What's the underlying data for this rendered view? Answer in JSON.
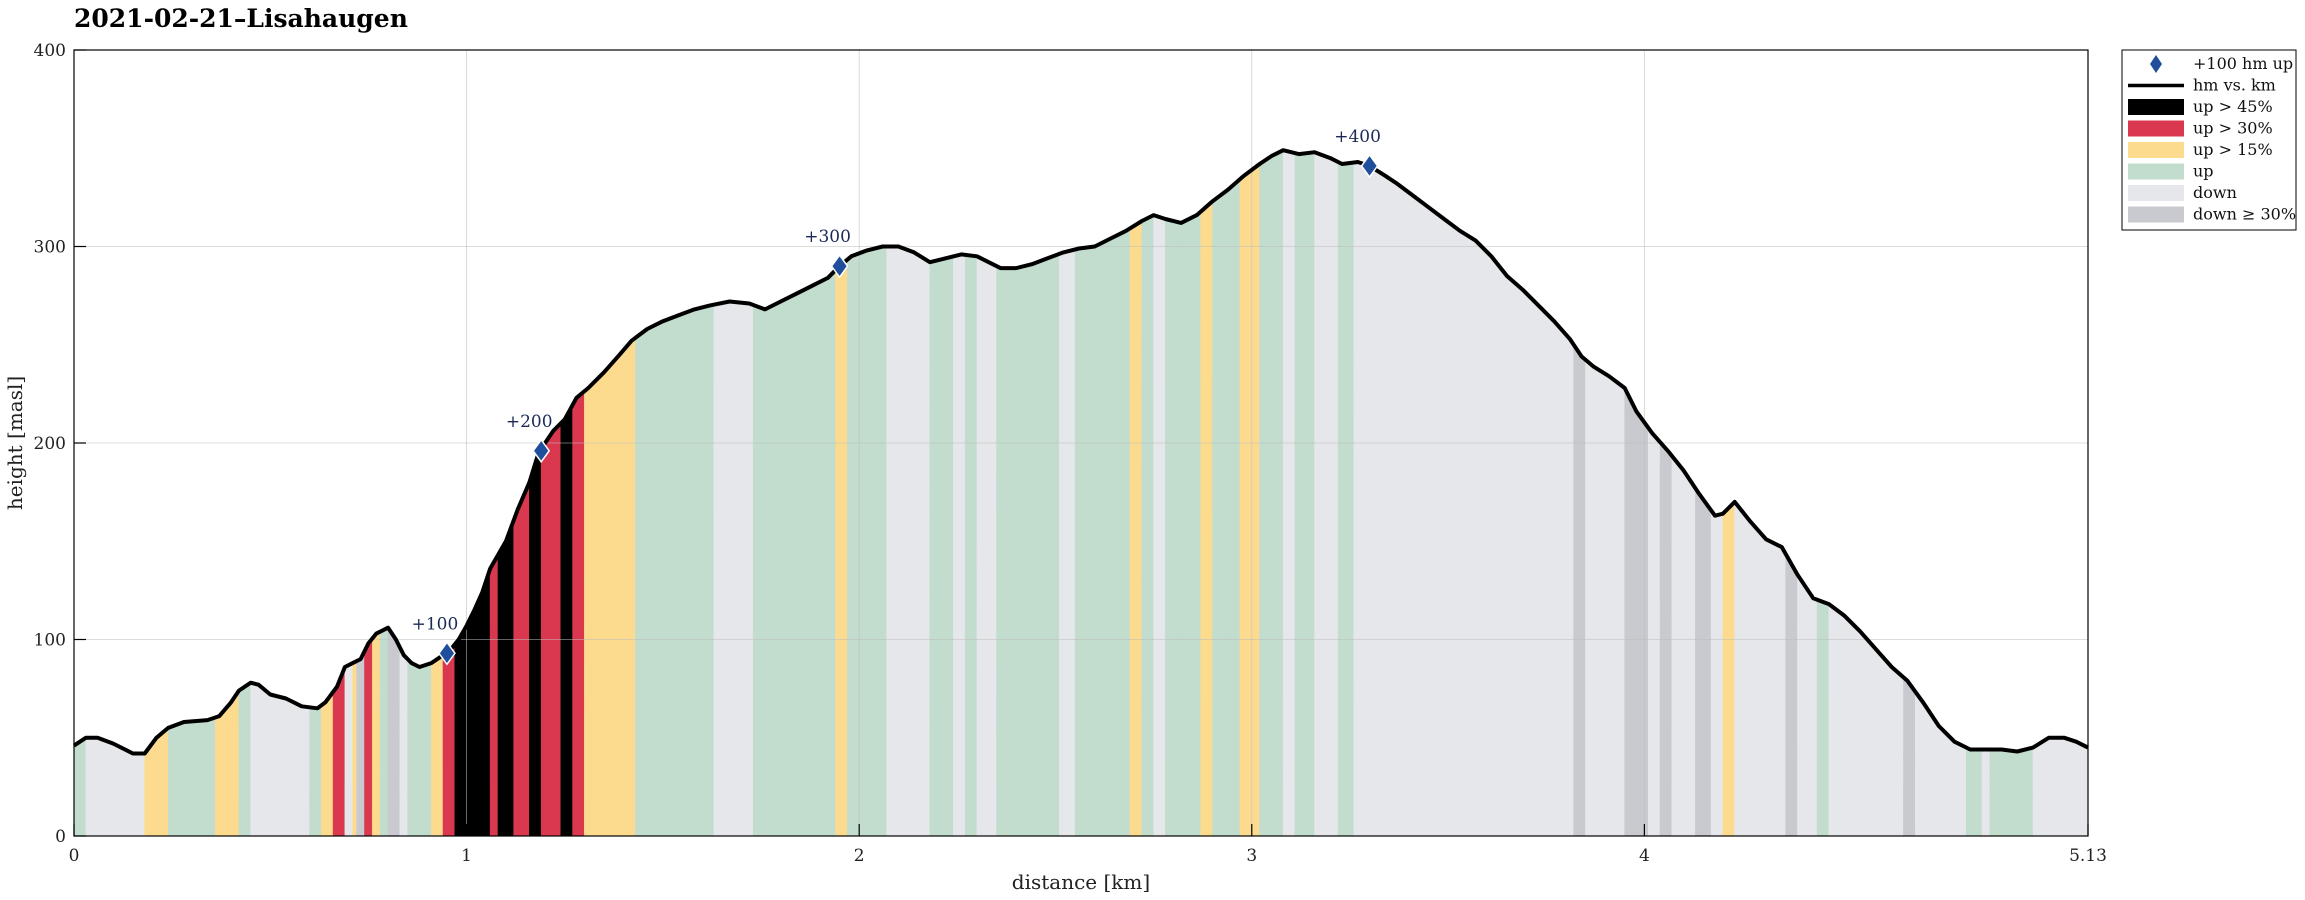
{
  "chart_data": {
    "type": "area",
    "title": "2021-02-21–Lisahaugen",
    "xlabel": "distance [km]",
    "ylabel": "height [masl]",
    "xlim": [
      0,
      5.13
    ],
    "ylim": [
      0,
      400
    ],
    "x_ticks": [
      0,
      1,
      2,
      3,
      4,
      5.13
    ],
    "x_tick_labels": [
      "0",
      "1",
      "2",
      "3",
      "4",
      "5.13"
    ],
    "y_ticks": [
      0,
      100,
      200,
      300,
      400
    ],
    "y_tick_labels": [
      "0",
      "100",
      "200",
      "300",
      "400"
    ],
    "grid": true,
    "legend_position": "outside-top-right",
    "legend": [
      {
        "label": "+100 hm up",
        "kind": "diamond",
        "color": "#1f4e9c"
      },
      {
        "label": "hm vs. km",
        "kind": "line",
        "color": "#000000"
      },
      {
        "label": "up > 45%",
        "kind": "patch",
        "color": "#000000"
      },
      {
        "label": "up > 30%",
        "kind": "patch",
        "color": "#d9384f"
      },
      {
        "label": "up > 15%",
        "kind": "patch",
        "color": "#fddb8e"
      },
      {
        "label": "up",
        "kind": "patch",
        "color": "#c2dccd"
      },
      {
        "label": "down",
        "kind": "patch",
        "color": "#e6e7ea"
      },
      {
        "label": "down ≥ 30%",
        "kind": "patch",
        "color": "#c8cad0"
      }
    ],
    "colors": {
      "up45": "#000000",
      "up30": "#d9384f",
      "up15": "#fddb8e",
      "up": "#c2dccd",
      "down": "#e6e7ea",
      "down30": "#c8cad0",
      "line": "#000000",
      "marker": "#1f4e9c"
    },
    "profile": [
      [
        0.0,
        46
      ],
      [
        0.03,
        50
      ],
      [
        0.06,
        50
      ],
      [
        0.1,
        47
      ],
      [
        0.15,
        42
      ],
      [
        0.18,
        42
      ],
      [
        0.21,
        50
      ],
      [
        0.24,
        55
      ],
      [
        0.28,
        58
      ],
      [
        0.34,
        59
      ],
      [
        0.37,
        61
      ],
      [
        0.4,
        68
      ],
      [
        0.42,
        74
      ],
      [
        0.45,
        78
      ],
      [
        0.47,
        77
      ],
      [
        0.5,
        72
      ],
      [
        0.54,
        70
      ],
      [
        0.58,
        66
      ],
      [
        0.62,
        65
      ],
      [
        0.64,
        68
      ],
      [
        0.67,
        76
      ],
      [
        0.69,
        86
      ],
      [
        0.71,
        88
      ],
      [
        0.73,
        90
      ],
      [
        0.75,
        98
      ],
      [
        0.77,
        103
      ],
      [
        0.8,
        106
      ],
      [
        0.82,
        100
      ],
      [
        0.84,
        92
      ],
      [
        0.86,
        88
      ],
      [
        0.88,
        86
      ],
      [
        0.91,
        88
      ],
      [
        0.94,
        92
      ],
      [
        0.96,
        95
      ],
      [
        0.98,
        100
      ],
      [
        1.0,
        107
      ],
      [
        1.02,
        115
      ],
      [
        1.04,
        124
      ],
      [
        1.06,
        136
      ],
      [
        1.1,
        150
      ],
      [
        1.13,
        166
      ],
      [
        1.16,
        180
      ],
      [
        1.18,
        193
      ],
      [
        1.2,
        200
      ],
      [
        1.22,
        206
      ],
      [
        1.25,
        212
      ],
      [
        1.28,
        223
      ],
      [
        1.31,
        228
      ],
      [
        1.35,
        236
      ],
      [
        1.39,
        245
      ],
      [
        1.42,
        252
      ],
      [
        1.46,
        258
      ],
      [
        1.5,
        262
      ],
      [
        1.54,
        265
      ],
      [
        1.58,
        268
      ],
      [
        1.62,
        270
      ],
      [
        1.67,
        272
      ],
      [
        1.72,
        271
      ],
      [
        1.76,
        268
      ],
      [
        1.8,
        272
      ],
      [
        1.84,
        276
      ],
      [
        1.88,
        280
      ],
      [
        1.92,
        284
      ],
      [
        1.95,
        290
      ],
      [
        1.98,
        295
      ],
      [
        2.02,
        298
      ],
      [
        2.06,
        300
      ],
      [
        2.1,
        300
      ],
      [
        2.14,
        297
      ],
      [
        2.18,
        292
      ],
      [
        2.22,
        294
      ],
      [
        2.26,
        296
      ],
      [
        2.3,
        295
      ],
      [
        2.33,
        292
      ],
      [
        2.36,
        289
      ],
      [
        2.4,
        289
      ],
      [
        2.44,
        291
      ],
      [
        2.48,
        294
      ],
      [
        2.52,
        297
      ],
      [
        2.56,
        299
      ],
      [
        2.6,
        300
      ],
      [
        2.64,
        304
      ],
      [
        2.68,
        308
      ],
      [
        2.72,
        313
      ],
      [
        2.75,
        316
      ],
      [
        2.78,
        314
      ],
      [
        2.82,
        312
      ],
      [
        2.86,
        316
      ],
      [
        2.9,
        323
      ],
      [
        2.94,
        329
      ],
      [
        2.98,
        336
      ],
      [
        3.02,
        342
      ],
      [
        3.05,
        346
      ],
      [
        3.08,
        349
      ],
      [
        3.12,
        347
      ],
      [
        3.16,
        348
      ],
      [
        3.2,
        345
      ],
      [
        3.23,
        342
      ],
      [
        3.27,
        343
      ],
      [
        3.3,
        341
      ],
      [
        3.34,
        336
      ],
      [
        3.37,
        332
      ],
      [
        3.41,
        326
      ],
      [
        3.45,
        320
      ],
      [
        3.49,
        314
      ],
      [
        3.53,
        308
      ],
      [
        3.57,
        303
      ],
      [
        3.61,
        295
      ],
      [
        3.65,
        285
      ],
      [
        3.69,
        278
      ],
      [
        3.73,
        270
      ],
      [
        3.77,
        262
      ],
      [
        3.81,
        253
      ],
      [
        3.84,
        244
      ],
      [
        3.87,
        239
      ],
      [
        3.91,
        234
      ],
      [
        3.95,
        228
      ],
      [
        3.98,
        216
      ],
      [
        4.02,
        205
      ],
      [
        4.06,
        196
      ],
      [
        4.1,
        186
      ],
      [
        4.14,
        174
      ],
      [
        4.18,
        163
      ],
      [
        4.2,
        164
      ],
      [
        4.23,
        170
      ],
      [
        4.27,
        160
      ],
      [
        4.31,
        151
      ],
      [
        4.35,
        147
      ],
      [
        4.39,
        133
      ],
      [
        4.43,
        121
      ],
      [
        4.47,
        118
      ],
      [
        4.51,
        112
      ],
      [
        4.55,
        104
      ],
      [
        4.59,
        95
      ],
      [
        4.63,
        86
      ],
      [
        4.67,
        79
      ],
      [
        4.71,
        68
      ],
      [
        4.75,
        56
      ],
      [
        4.79,
        48
      ],
      [
        4.83,
        44
      ],
      [
        4.87,
        44
      ],
      [
        4.91,
        44
      ],
      [
        4.95,
        43
      ],
      [
        4.99,
        45
      ],
      [
        5.03,
        50
      ],
      [
        5.07,
        50
      ],
      [
        5.1,
        48
      ],
      [
        5.13,
        45
      ]
    ],
    "segments": [
      [
        0.0,
        0.03,
        "up"
      ],
      [
        0.03,
        0.18,
        "down"
      ],
      [
        0.18,
        0.24,
        "up15"
      ],
      [
        0.24,
        0.36,
        "up"
      ],
      [
        0.36,
        0.42,
        "up15"
      ],
      [
        0.42,
        0.45,
        "up"
      ],
      [
        0.45,
        0.6,
        "down"
      ],
      [
        0.6,
        0.63,
        "up"
      ],
      [
        0.63,
        0.66,
        "up15"
      ],
      [
        0.66,
        0.69,
        "up30"
      ],
      [
        0.69,
        0.71,
        "down"
      ],
      [
        0.71,
        0.72,
        "up15"
      ],
      [
        0.72,
        0.74,
        "down30"
      ],
      [
        0.74,
        0.76,
        "up30"
      ],
      [
        0.76,
        0.78,
        "up15"
      ],
      [
        0.78,
        0.8,
        "up"
      ],
      [
        0.8,
        0.83,
        "down30"
      ],
      [
        0.83,
        0.85,
        "down"
      ],
      [
        0.85,
        0.91,
        "up"
      ],
      [
        0.91,
        0.94,
        "up15"
      ],
      [
        0.94,
        0.97,
        "up30"
      ],
      [
        0.97,
        1.06,
        "up45"
      ],
      [
        1.06,
        1.08,
        "up30"
      ],
      [
        1.08,
        1.12,
        "up45"
      ],
      [
        1.12,
        1.16,
        "up30"
      ],
      [
        1.16,
        1.19,
        "up45"
      ],
      [
        1.19,
        1.24,
        "up30"
      ],
      [
        1.24,
        1.27,
        "up45"
      ],
      [
        1.27,
        1.3,
        "up30"
      ],
      [
        1.3,
        1.43,
        "up15"
      ],
      [
        1.43,
        1.63,
        "up"
      ],
      [
        1.63,
        1.73,
        "down"
      ],
      [
        1.73,
        1.94,
        "up"
      ],
      [
        1.94,
        1.97,
        "up15"
      ],
      [
        1.97,
        2.07,
        "up"
      ],
      [
        2.07,
        2.18,
        "down"
      ],
      [
        2.18,
        2.24,
        "up"
      ],
      [
        2.24,
        2.27,
        "down"
      ],
      [
        2.27,
        2.3,
        "up"
      ],
      [
        2.3,
        2.35,
        "down"
      ],
      [
        2.35,
        2.51,
        "up"
      ],
      [
        2.51,
        2.55,
        "down"
      ],
      [
        2.55,
        2.69,
        "up"
      ],
      [
        2.69,
        2.72,
        "up15"
      ],
      [
        2.72,
        2.75,
        "up"
      ],
      [
        2.75,
        2.78,
        "down"
      ],
      [
        2.78,
        2.82,
        "up"
      ],
      [
        2.82,
        2.87,
        "up"
      ],
      [
        2.87,
        2.9,
        "up15"
      ],
      [
        2.9,
        2.94,
        "up"
      ],
      [
        2.94,
        2.97,
        "up"
      ],
      [
        2.97,
        3.02,
        "up15"
      ],
      [
        3.02,
        3.08,
        "up"
      ],
      [
        3.08,
        3.11,
        "down"
      ],
      [
        3.11,
        3.16,
        "up"
      ],
      [
        3.16,
        3.22,
        "down"
      ],
      [
        3.22,
        3.26,
        "up"
      ],
      [
        3.26,
        3.82,
        "down"
      ],
      [
        3.82,
        3.85,
        "down30"
      ],
      [
        3.85,
        3.95,
        "down"
      ],
      [
        3.95,
        4.01,
        "down30"
      ],
      [
        4.01,
        4.04,
        "down"
      ],
      [
        4.04,
        4.07,
        "down30"
      ],
      [
        4.07,
        4.13,
        "down"
      ],
      [
        4.13,
        4.17,
        "down30"
      ],
      [
        4.17,
        4.2,
        "down"
      ],
      [
        4.2,
        4.23,
        "up15"
      ],
      [
        4.23,
        4.36,
        "down"
      ],
      [
        4.36,
        4.39,
        "down30"
      ],
      [
        4.39,
        4.44,
        "down"
      ],
      [
        4.44,
        4.47,
        "up"
      ],
      [
        4.47,
        4.66,
        "down"
      ],
      [
        4.66,
        4.69,
        "down30"
      ],
      [
        4.69,
        4.82,
        "down"
      ],
      [
        4.82,
        4.86,
        "up"
      ],
      [
        4.86,
        4.88,
        "down"
      ],
      [
        4.88,
        4.99,
        "up"
      ],
      [
        4.99,
        5.13,
        "down"
      ]
    ],
    "markers": [
      {
        "x": 0.95,
        "y": 93,
        "label": "+100"
      },
      {
        "x": 1.19,
        "y": 196,
        "label": "+200"
      },
      {
        "x": 1.95,
        "y": 290,
        "label": "+300"
      },
      {
        "x": 3.3,
        "y": 341,
        "label": "+400"
      }
    ]
  }
}
